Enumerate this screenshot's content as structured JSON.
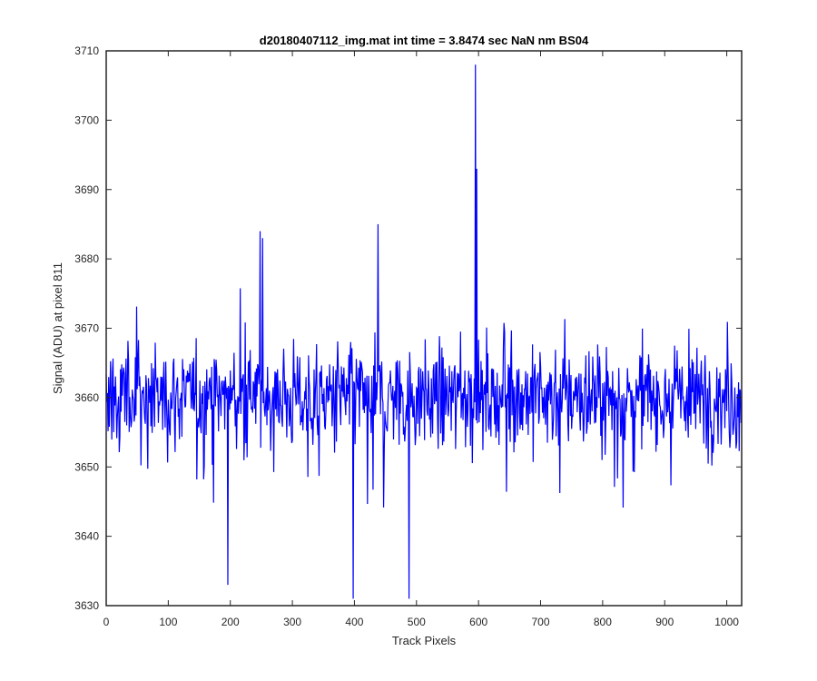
{
  "chart_data": {
    "type": "line",
    "title": "d20180407112_img.mat int time = 3.8474 sec  NaN nm BS04",
    "xlabel": "Track Pixels",
    "ylabel": "Signal (ADU) at pixel 811",
    "xlim": [
      0,
      1024
    ],
    "ylim": [
      3630,
      3710
    ],
    "xticks": [
      0,
      100,
      200,
      300,
      400,
      500,
      600,
      700,
      800,
      900,
      1000
    ],
    "yticks": [
      3630,
      3640,
      3650,
      3660,
      3670,
      3680,
      3690,
      3700,
      3710
    ],
    "grid": false,
    "legend": "none",
    "series": [
      {
        "color": "#0000ff",
        "n_points": 1024,
        "noise_center": 3660,
        "typical_range": [
          3643,
          3675
        ],
        "notable_points": [
          {
            "x": 196,
            "y": 3633
          },
          {
            "x": 248,
            "y": 3684
          },
          {
            "x": 252,
            "y": 3683
          },
          {
            "x": 398,
            "y": 3631
          },
          {
            "x": 438,
            "y": 3685
          },
          {
            "x": 488,
            "y": 3631
          },
          {
            "x": 595,
            "y": 3708
          },
          {
            "x": 597,
            "y": 3693
          }
        ]
      }
    ]
  }
}
